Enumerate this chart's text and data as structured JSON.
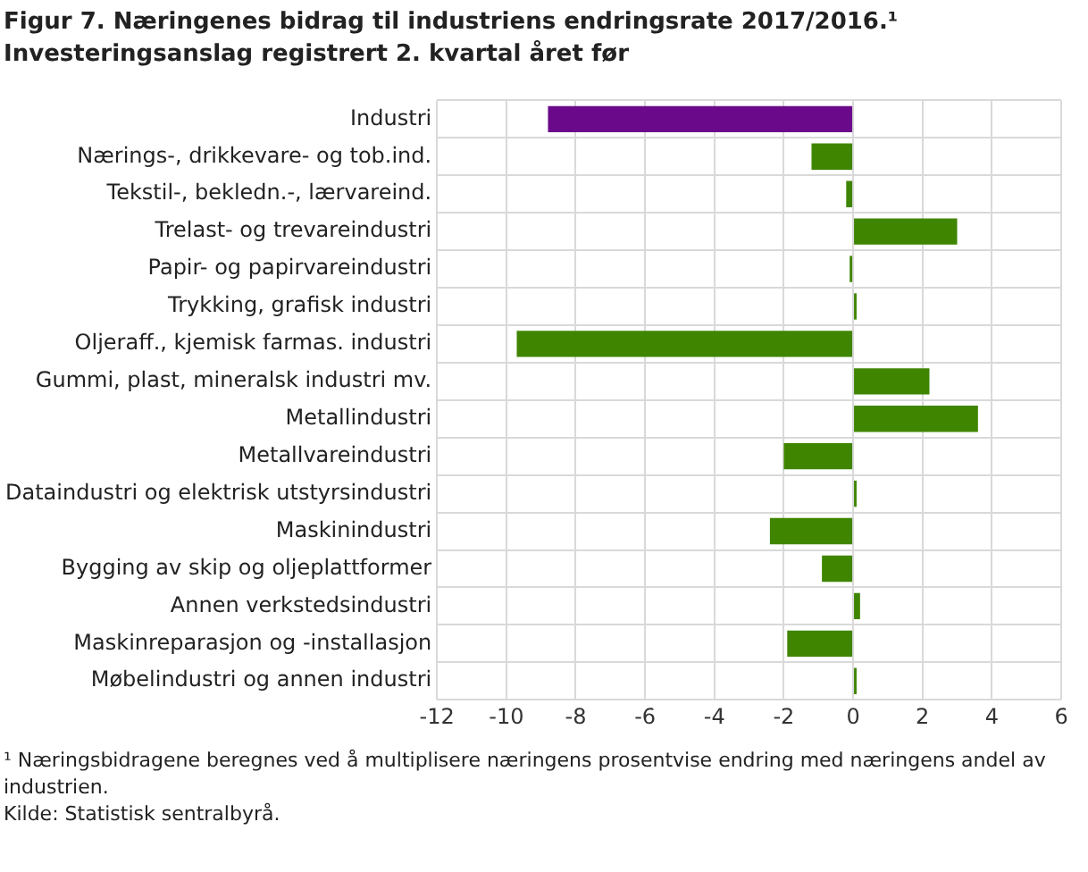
{
  "chart_data": {
    "type": "bar",
    "orientation": "horizontal",
    "title": "Figur 7. Næringenes bidrag til industriens endringsrate 2017/2016.¹",
    "subtitle": "Investeringsanslag registrert 2. kvartal året før",
    "categories": [
      "Industri",
      "Nærings-, drikkevare- og tob.ind.",
      "Tekstil-, bekledn.-, lærvareind.",
      "Trelast- og trevareindustri",
      "Papir- og papirvareindustri",
      "Trykking, grafisk industri",
      "Oljeraff., kjemisk farmas. industri",
      "Gummi, plast, mineralsk industri mv.",
      "Metallindustri",
      "Metallvareindustri",
      "Dataindustri og elektrisk utstyrsindustri",
      "Maskinindustri",
      "Bygging av skip og oljeplattformer",
      "Annen verkstedsindustri",
      "Maskinreparasjon og -installasjon",
      "Møbelindustri og annen industri"
    ],
    "values": [
      -8.8,
      -1.2,
      -0.2,
      3.0,
      -0.1,
      0.1,
      -9.7,
      2.2,
      3.6,
      -2.0,
      0.1,
      -2.4,
      -0.9,
      0.2,
      -1.9,
      0.1
    ],
    "colors": [
      "#6a0a8a",
      "#3f8500",
      "#3f8500",
      "#3f8500",
      "#3f8500",
      "#3f8500",
      "#3f8500",
      "#3f8500",
      "#3f8500",
      "#3f8500",
      "#3f8500",
      "#3f8500",
      "#3f8500",
      "#3f8500",
      "#3f8500",
      "#3f8500"
    ],
    "xlim": [
      -12,
      6
    ],
    "xticks": [
      -12,
      -10,
      -8,
      -6,
      -4,
      -2,
      0,
      2,
      4,
      6
    ],
    "grid": true,
    "annotations": [
      "¹ Næringsbidragene beregnes ved å multiplisere næringens prosentvise endring med næringens andel av industrien.",
      "Kilde: Statistisk sentralbyrå."
    ]
  }
}
